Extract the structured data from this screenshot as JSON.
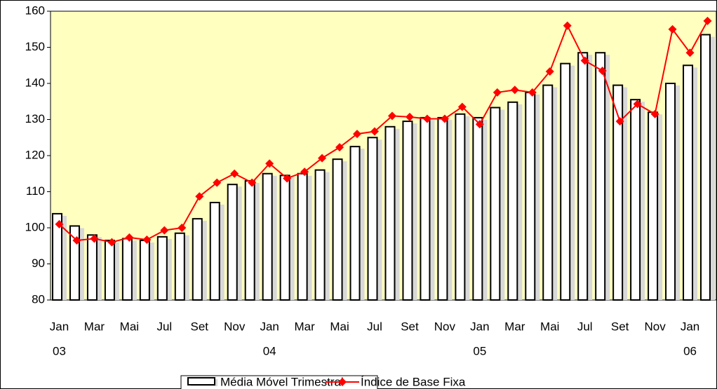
{
  "chart_data": {
    "type": "bar_line",
    "categories": [
      "Jan",
      null,
      "Mar",
      null,
      "Mai",
      null,
      "Jul",
      null,
      "Set",
      null,
      "Nov",
      null,
      "Jan",
      null,
      "Mar",
      null,
      "Mai",
      null,
      "Jul",
      null,
      "Set",
      null,
      "Nov",
      null,
      "Jan",
      null,
      "Mar",
      null,
      "Mai",
      null,
      "Jul",
      null,
      "Set",
      null,
      "Nov",
      null,
      "Jan",
      null
    ],
    "category_years": [
      "03",
      null,
      null,
      null,
      null,
      null,
      null,
      null,
      null,
      null,
      null,
      null,
      "04",
      null,
      null,
      null,
      null,
      null,
      null,
      null,
      null,
      null,
      null,
      null,
      "05",
      null,
      null,
      null,
      null,
      null,
      null,
      null,
      null,
      null,
      null,
      null,
      "06",
      null
    ],
    "series": [
      {
        "name": "Média Móvel Trimestral",
        "type": "bar",
        "color": "#ffffff",
        "values": [
          103.9,
          100.5,
          98,
          96.5,
          97,
          96.5,
          97.5,
          98.5,
          102.5,
          107,
          112,
          113,
          115,
          114.5,
          115,
          116,
          119,
          122.5,
          125,
          128,
          129.5,
          130.5,
          130.5,
          131.5,
          130.5,
          133.3,
          134.8,
          137.5,
          139.5,
          145.5,
          148.5,
          148.5,
          139.5,
          135.5,
          132,
          140,
          145,
          153.5
        ]
      },
      {
        "name": "Índice de Base Fixa",
        "type": "line",
        "color": "#ff0000",
        "values": [
          101,
          96.5,
          97,
          96,
          97.3,
          96.7,
          99.3,
          100,
          108.7,
          112.5,
          115,
          112.5,
          117.8,
          113.7,
          115.5,
          119.3,
          122.3,
          126,
          126.7,
          131,
          130.7,
          130.2,
          130.2,
          133.5,
          128.7,
          137.5,
          138.2,
          137.5,
          143.3,
          156,
          146.3,
          143.5,
          129.5,
          134.3,
          131.5,
          155,
          148.5,
          157.3
        ]
      }
    ],
    "ylim": [
      80,
      160
    ],
    "yticks": [
      80,
      90,
      100,
      110,
      120,
      130,
      140,
      150,
      160
    ],
    "plot_background": "#ffffc0",
    "legend": "bottom"
  }
}
